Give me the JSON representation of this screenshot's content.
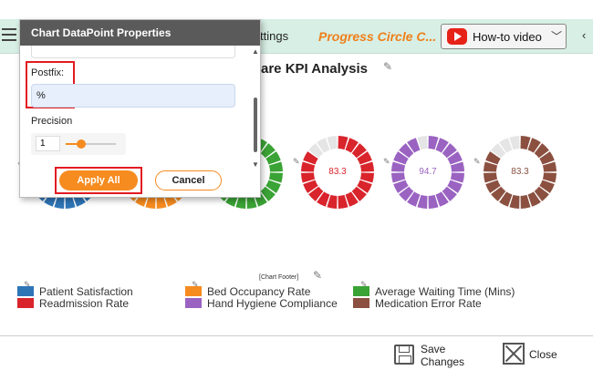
{
  "topbar": {
    "settings_text": "ttings",
    "progress_title": "Progress Circle C...",
    "howto_label": "How-to video"
  },
  "chart": {
    "title": "are KPI Analysis",
    "footer": "[Chart Footer]",
    "donuts": [
      {
        "name": "Patient Satisfaction",
        "value": null,
        "label": "",
        "color": "#2e75b6"
      },
      {
        "name": "Bed Occupancy Rate",
        "value": null,
        "label": "",
        "color": "#f68b1f"
      },
      {
        "name": "Average Waiting Time (Mins)",
        "value": null,
        "label": "",
        "color": "#3aa335"
      },
      {
        "name": "Readmission Rate",
        "value": 83.3,
        "label": "83.3",
        "color": "#d9242c"
      },
      {
        "name": "Hand Hygiene Compliance",
        "value": 94.7,
        "label": "94.7",
        "color": "#9a63c2"
      },
      {
        "name": "Medication Error Rate",
        "value": 83.3,
        "label": "83.3",
        "color": "#8b5040"
      }
    ],
    "legend": [
      {
        "label": "Patient Satisfaction",
        "color": "#2e75b6"
      },
      {
        "label": "Readmission Rate",
        "color": "#d9242c"
      },
      {
        "label": "Bed Occupancy Rate",
        "color": "#f68b1f"
      },
      {
        "label": "Hand Hygiene Compliance",
        "color": "#9a63c2"
      },
      {
        "label": "Average Waiting Time (Mins)",
        "color": "#3aa335"
      },
      {
        "label": "Medication Error Rate",
        "color": "#8b5040"
      }
    ]
  },
  "dialog": {
    "title": "Chart DataPoint Properties",
    "postfix_label": "Postfix:",
    "postfix_value": "%",
    "precision_label": "Precision",
    "precision_value": "1",
    "apply_label": "Apply All",
    "cancel_label": "Cancel"
  },
  "bottom": {
    "save_label": "Save Changes",
    "close_label": "Close"
  }
}
